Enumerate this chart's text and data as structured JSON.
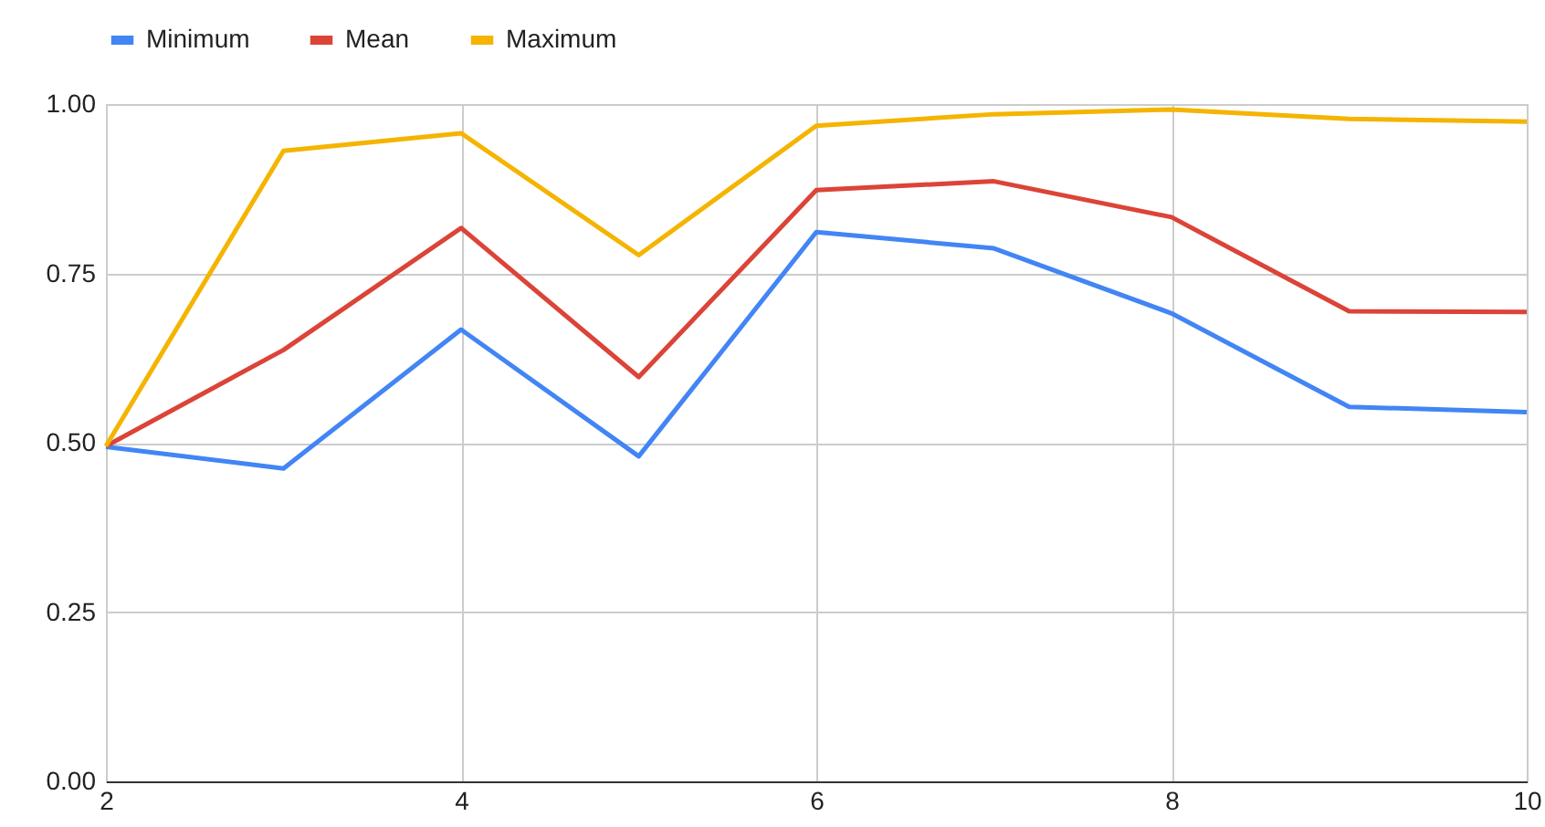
{
  "chart_data": {
    "type": "line",
    "x": [
      2,
      3,
      4,
      5,
      6,
      7,
      8,
      9,
      10
    ],
    "series": [
      {
        "name": "Minimum",
        "color": "#4285f4",
        "values": [
          0.494,
          0.462,
          0.667,
          0.48,
          0.811,
          0.787,
          0.691,
          0.553,
          0.545
        ]
      },
      {
        "name": "Mean",
        "color": "#db4437",
        "values": [
          0.495,
          0.637,
          0.817,
          0.597,
          0.873,
          0.886,
          0.833,
          0.694,
          0.693
        ]
      },
      {
        "name": "Maximum",
        "color": "#f4b400",
        "values": [
          0.495,
          0.931,
          0.957,
          0.777,
          0.968,
          0.985,
          0.992,
          0.978,
          0.974
        ]
      }
    ],
    "xlim": [
      2,
      10
    ],
    "xticks": [
      2,
      4,
      6,
      8,
      10
    ],
    "ylim": [
      0,
      1
    ],
    "yticks": [
      {
        "value": 0,
        "label": "0.00"
      },
      {
        "value": 0.25,
        "label": "0.25"
      },
      {
        "value": 0.5,
        "label": "0.50"
      },
      {
        "value": 0.75,
        "label": "0.75"
      },
      {
        "value": 1,
        "label": "1.00"
      }
    ],
    "grid": true,
    "legend": "top",
    "marker": "none",
    "line_style": "solid"
  }
}
